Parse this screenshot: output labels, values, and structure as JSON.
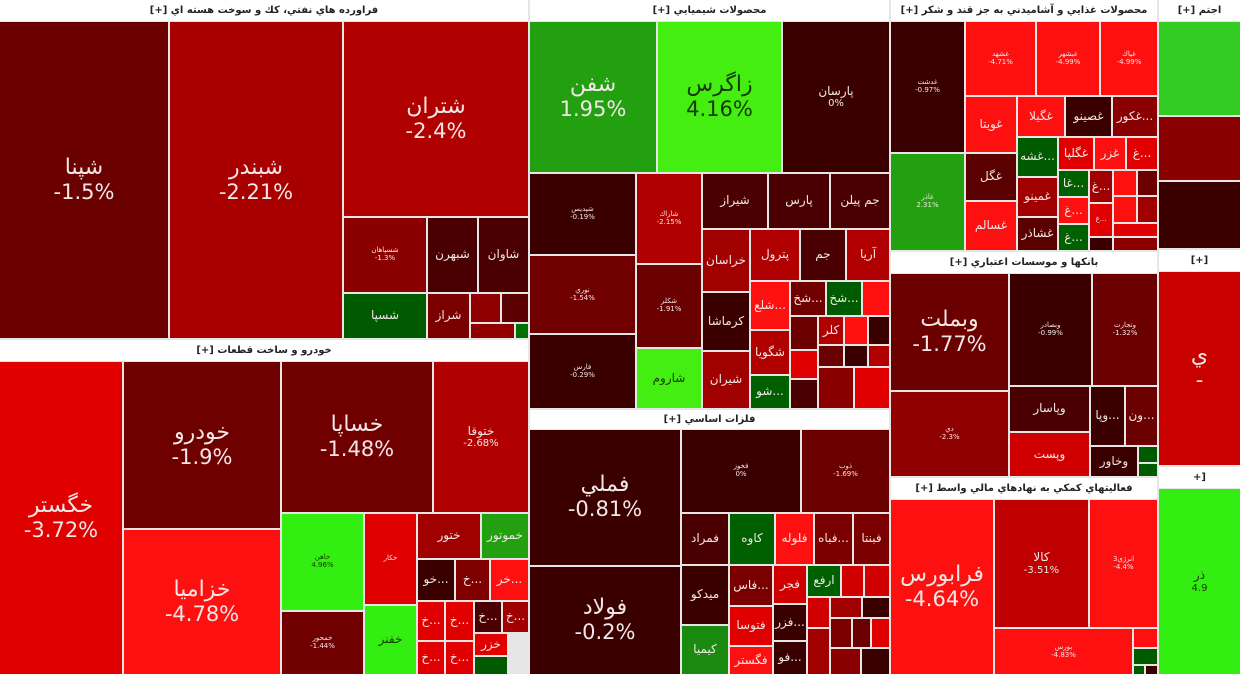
{
  "sectors": [
    {
      "title": "فراورده هاي نفتي، كك و سوخت هسته اي [+]",
      "tiles": [
        {
          "symbol": "شپنا",
          "change": "-1.5%",
          "color": "#6a0000"
        },
        {
          "symbol": "شبندر",
          "change": "-2.21%",
          "color": "#a80000"
        },
        {
          "symbol": "شتران",
          "change": "-2.4%",
          "color": "#b00000"
        },
        {
          "symbol": "شسپاهان",
          "change": "-1.3%",
          "color": "#8a0000"
        },
        {
          "symbol": "شبهرن",
          "change": "",
          "color": "#4a0000"
        },
        {
          "symbol": "شاوان",
          "change": "",
          "color": "#4a0000"
        },
        {
          "symbol": "شسپا",
          "change": "",
          "color": "#005a00"
        },
        {
          "symbol": "شراز",
          "change": "",
          "color": "#7a0000"
        },
        {
          "symbol": "",
          "change": "",
          "color": "#900000"
        },
        {
          "symbol": "",
          "change": "",
          "color": "#5a0000"
        },
        {
          "symbol": "",
          "change": "",
          "color": "#900000"
        },
        {
          "symbol": "",
          "change": "",
          "color": "#007000"
        }
      ]
    },
    {
      "title": "خودرو و ساخت قطعات [+]",
      "tiles": [
        {
          "symbol": "خگستر",
          "change": "-3.72%",
          "color": "#e00000"
        },
        {
          "symbol": "خودرو",
          "change": "-1.9%",
          "color": "#6e0000"
        },
        {
          "symbol": "خزاميا",
          "change": "-4.78%",
          "color": "#ff1010"
        },
        {
          "symbol": "خساپا",
          "change": "-1.48%",
          "color": "#700000"
        },
        {
          "symbol": "ختوقا",
          "change": "-2.68%",
          "color": "#b00000"
        },
        {
          "symbol": "خاهن",
          "change": "4.96%",
          "color": "#33ee11"
        },
        {
          "symbol": "خمحور",
          "change": "-1.44%",
          "color": "#700000"
        },
        {
          "symbol": "خكار",
          "change": "",
          "color": "#e00000"
        },
        {
          "symbol": "خفنر",
          "change": "",
          "color": "#33ee11"
        },
        {
          "symbol": "ختور",
          "change": "",
          "color": "#a00000"
        },
        {
          "symbol": "خموتور",
          "change": "",
          "color": "#22a010"
        },
        {
          "symbol": "...خو",
          "change": "",
          "color": "#3a0000"
        },
        {
          "symbol": "...خ",
          "change": "",
          "color": "#800000"
        },
        {
          "symbol": "...خر",
          "change": "",
          "color": "#ff1010"
        },
        {
          "symbol": "...خ",
          "change": "",
          "color": "#e00000"
        },
        {
          "symbol": "...خ",
          "change": "",
          "color": "#e00000"
        },
        {
          "symbol": "...خ",
          "change": "",
          "color": "#4a0000"
        },
        {
          "symbol": "...خ",
          "change": "",
          "color": "#a00000"
        },
        {
          "symbol": "...خ",
          "change": "",
          "color": "#e00000"
        },
        {
          "symbol": "...خ",
          "change": "",
          "color": "#e00000"
        },
        {
          "symbol": "خزر",
          "change": "",
          "color": "#e00000"
        },
        {
          "symbol": "",
          "change": "",
          "color": "#005a00"
        }
      ]
    },
    {
      "title": "محصولات شيميايي [+]",
      "tiles": [
        {
          "symbol": "شفن",
          "change": "1.95%",
          "color": "#22a010"
        },
        {
          "symbol": "زاگرس",
          "change": "4.16%",
          "color": "#44ee11"
        },
        {
          "symbol": "پارسان",
          "change": "0%",
          "color": "#3a0000"
        },
        {
          "symbol": "شپديس",
          "change": "-0.19%",
          "color": "#3a0000"
        },
        {
          "symbol": "نوري",
          "change": "-1.54%",
          "color": "#700000"
        },
        {
          "symbol": "فارس",
          "change": "-0.29%",
          "color": "#3a0000"
        },
        {
          "symbol": "شاراك",
          "change": "-2.15%",
          "color": "#b00000"
        },
        {
          "symbol": "شكلر",
          "change": "-1.91%",
          "color": "#6a0000"
        },
        {
          "symbol": "شاروم",
          "change": "",
          "color": "#44ee11"
        },
        {
          "symbol": "شيراز",
          "change": "",
          "color": "#4a0000"
        },
        {
          "symbol": "پارس",
          "change": "",
          "color": "#4a0000"
        },
        {
          "symbol": "جم پيلن",
          "change": "",
          "color": "#4a0000"
        },
        {
          "symbol": "خراسان",
          "change": "",
          "color": "#a00000"
        },
        {
          "symbol": "پترول",
          "change": "",
          "color": "#b00000"
        },
        {
          "symbol": "جم",
          "change": "",
          "color": "#4a0000"
        },
        {
          "symbol": "آريا",
          "change": "",
          "color": "#b00000"
        },
        {
          "symbol": "كرماشا",
          "change": "",
          "color": "#3a0000"
        },
        {
          "symbol": "شيران",
          "change": "",
          "color": "#a00000"
        },
        {
          "symbol": "...شلع",
          "change": "",
          "color": "#ff1010"
        },
        {
          "symbol": "شگويا",
          "change": "",
          "color": "#b00000"
        },
        {
          "symbol": "...شو",
          "change": "",
          "color": "#006000"
        },
        {
          "symbol": "...شخ",
          "change": "",
          "color": "#700000"
        },
        {
          "symbol": "...شخ",
          "change": "",
          "color": "#005a00"
        },
        {
          "symbol": "",
          "change": "",
          "color": "#ff1010"
        },
        {
          "symbol": "",
          "change": "",
          "color": "#6a0000"
        },
        {
          "symbol": "",
          "change": "",
          "color": "#e00000"
        },
        {
          "symbol": "",
          "change": "",
          "color": "#4a0000"
        },
        {
          "symbol": "كلر",
          "change": "",
          "color": "#b00000"
        },
        {
          "symbol": "",
          "change": "",
          "color": "#ff1010"
        },
        {
          "symbol": "",
          "change": "",
          "color": "#3a0000"
        },
        {
          "symbol": "",
          "change": "",
          "color": "#6a0000"
        },
        {
          "symbol": "",
          "change": "",
          "color": "#3a0000"
        },
        {
          "symbol": "",
          "change": "",
          "color": "#b00000"
        },
        {
          "symbol": "",
          "change": "",
          "color": "#8a0000"
        },
        {
          "symbol": "",
          "change": "",
          "color": "#e00000"
        }
      ]
    },
    {
      "title": "فلزات اساسي [+]",
      "tiles": [
        {
          "symbol": "فملي",
          "change": "-0.81%",
          "color": "#3a0000"
        },
        {
          "symbol": "فولاد",
          "change": "-0.2%",
          "color": "#3a0000"
        },
        {
          "symbol": "فخوز",
          "change": "0%",
          "color": "#3a0000"
        },
        {
          "symbol": "ذوب",
          "change": "-1.69%",
          "color": "#6a0000"
        },
        {
          "symbol": "فمراد",
          "change": "",
          "color": "#4a0000"
        },
        {
          "symbol": "كاوه",
          "change": "",
          "color": "#006000"
        },
        {
          "symbol": "فلوله",
          "change": "",
          "color": "#ff1010"
        },
        {
          "symbol": "...فباه",
          "change": "",
          "color": "#7a0000"
        },
        {
          "symbol": "فبنتا",
          "change": "",
          "color": "#7a0000"
        },
        {
          "symbol": "ميدكو",
          "change": "",
          "color": "#3a0000"
        },
        {
          "symbol": "كيميا",
          "change": "",
          "color": "#1a8a10"
        },
        {
          "symbol": "...فاس",
          "change": "",
          "color": "#7a0000"
        },
        {
          "symbol": "فتوسا",
          "change": "",
          "color": "#e00000"
        },
        {
          "symbol": "فگستر",
          "change": "",
          "color": "#ff1010"
        },
        {
          "symbol": "فجر",
          "change": "",
          "color": "#d00000"
        },
        {
          "symbol": "...فزر",
          "change": "",
          "color": "#3a0000"
        },
        {
          "symbol": "...فو",
          "change": "",
          "color": "#3a0000"
        },
        {
          "symbol": "ارفع",
          "change": "",
          "color": "#006000"
        },
        {
          "symbol": "",
          "change": "",
          "color": "#d00000"
        },
        {
          "symbol": "",
          "change": "",
          "color": "#d00000"
        },
        {
          "symbol": "",
          "change": "",
          "color": "#d00000"
        },
        {
          "symbol": "",
          "change": "",
          "color": "#a00000"
        },
        {
          "symbol": "",
          "change": "",
          "color": "#3a0000"
        },
        {
          "symbol": "",
          "change": "",
          "color": "#a00000"
        },
        {
          "symbol": "",
          "change": "",
          "color": "#7a0000"
        },
        {
          "symbol": "",
          "change": "",
          "color": "#6a0000"
        },
        {
          "symbol": "",
          "change": "",
          "color": "#e00000"
        },
        {
          "symbol": "",
          "change": "",
          "color": "#8a0000"
        },
        {
          "symbol": "",
          "change": "",
          "color": "#3a0000"
        }
      ]
    },
    {
      "title": "محصولات غذايي و آشاميدني به جز قند و شكر [+]",
      "tiles": [
        {
          "symbol": "غدشت",
          "change": "-0.97%",
          "color": "#3a0000"
        },
        {
          "symbol": "غاذر",
          "change": "2.31%",
          "color": "#22a010"
        },
        {
          "symbol": "غشهد",
          "change": "-4.71%",
          "color": "#ff1010"
        },
        {
          "symbol": "غبشهر",
          "change": "-4.99%",
          "color": "#ff1010"
        },
        {
          "symbol": "غپاك",
          "change": "-4.99%",
          "color": "#ff1010"
        },
        {
          "symbol": "غويتا",
          "change": "",
          "color": "#ff1010"
        },
        {
          "symbol": "غگل",
          "change": "",
          "color": "#5a0000"
        },
        {
          "symbol": "غسالم",
          "change": "",
          "color": "#ff1010"
        },
        {
          "symbol": "غگيلا",
          "change": "",
          "color": "#ff1010"
        },
        {
          "symbol": "غصينو",
          "change": "",
          "color": "#3a0000"
        },
        {
          "symbol": "...غكور",
          "change": "",
          "color": "#8a0000"
        },
        {
          "symbol": "...غشه",
          "change": "",
          "color": "#005a00"
        },
        {
          "symbol": "غگلپا",
          "change": "",
          "color": "#e00000"
        },
        {
          "symbol": "غزر",
          "change": "",
          "color": "#ff1010"
        },
        {
          "symbol": "...غ",
          "change": "",
          "color": "#e00000"
        },
        {
          "symbol": "غمينو",
          "change": "",
          "color": "#a00000"
        },
        {
          "symbol": "غشاذر",
          "change": "",
          "color": "#5a0000"
        },
        {
          "symbol": "...غا",
          "change": "",
          "color": "#006000"
        },
        {
          "symbol": "...غ",
          "change": "",
          "color": "#ff1010"
        },
        {
          "symbol": "...غ",
          "change": "",
          "color": "#006000"
        },
        {
          "symbol": "...غ",
          "change": "",
          "color": "#a00000"
        },
        {
          "symbol": "...غ",
          "change": "",
          "color": "#e00000"
        },
        {
          "symbol": "",
          "change": "",
          "color": "#3a0000"
        },
        {
          "symbol": "",
          "change": "",
          "color": "#ff1010"
        },
        {
          "symbol": "",
          "change": "",
          "color": "#6a0000"
        },
        {
          "symbol": "",
          "change": "",
          "color": "#ff1010"
        },
        {
          "symbol": "",
          "change": "",
          "color": "#a00000"
        },
        {
          "symbol": "",
          "change": "",
          "color": "#e00000"
        },
        {
          "symbol": "",
          "change": "",
          "color": "#8a0000"
        }
      ]
    },
    {
      "title": "بانكها و موسسات اعتباري [+]",
      "tiles": [
        {
          "symbol": "وبملت",
          "change": "-1.77%",
          "color": "#6a0000"
        },
        {
          "symbol": "دي",
          "change": "-2.3%",
          "color": "#900000"
        },
        {
          "symbol": "وبصادر",
          "change": "-0.99%",
          "color": "#3a0000"
        },
        {
          "symbol": "وتجارت",
          "change": "-1.32%",
          "color": "#6a0000"
        },
        {
          "symbol": "وپاسار",
          "change": "",
          "color": "#4a0000"
        },
        {
          "symbol": "وپست",
          "change": "",
          "color": "#d00000"
        },
        {
          "symbol": "...وپا",
          "change": "",
          "color": "#3a0000"
        },
        {
          "symbol": "...ون",
          "change": "",
          "color": "#6a0000"
        },
        {
          "symbol": "وخاور",
          "change": "",
          "color": "#3a0000"
        },
        {
          "symbol": "",
          "change": "",
          "color": "#005a00"
        },
        {
          "symbol": "",
          "change": "",
          "color": "#005a00"
        }
      ]
    },
    {
      "title": "فعاليتهاي كمكي به نهادهاي مالي واسط [+]",
      "tiles": [
        {
          "symbol": "فرابورس",
          "change": "-4.64%",
          "color": "#ff1010"
        },
        {
          "symbol": "كالا",
          "change": "-3.51%",
          "color": "#c00000"
        },
        {
          "symbol": "انرژي3",
          "change": "-4.4%",
          "color": "#ff1010"
        },
        {
          "symbol": "بورس",
          "change": "-4.83%",
          "color": "#ff1010"
        },
        {
          "symbol": "",
          "change": "",
          "color": "#ff1010"
        },
        {
          "symbol": "",
          "change": "",
          "color": "#005a00"
        },
        {
          "symbol": "",
          "change": "",
          "color": "#005a00"
        },
        {
          "symbol": "",
          "change": "",
          "color": "#3a0000"
        }
      ]
    },
    {
      "title": "اجتم [+]",
      "tiles": [
        {
          "symbol": "",
          "change": "",
          "color": "#33cc22"
        },
        {
          "symbol": "",
          "change": "",
          "color": "#8a0000"
        },
        {
          "symbol": "",
          "change": "",
          "color": "#3a0000"
        }
      ]
    },
    {
      "title": "[+]",
      "tiles": [
        {
          "symbol": "ي",
          "change": "-",
          "color": "#c80000"
        }
      ]
    },
    {
      "title": "[+",
      "tiles": [
        {
          "symbol": "ذر",
          "change": "4.9",
          "color": "#33ee11"
        }
      ]
    }
  ]
}
